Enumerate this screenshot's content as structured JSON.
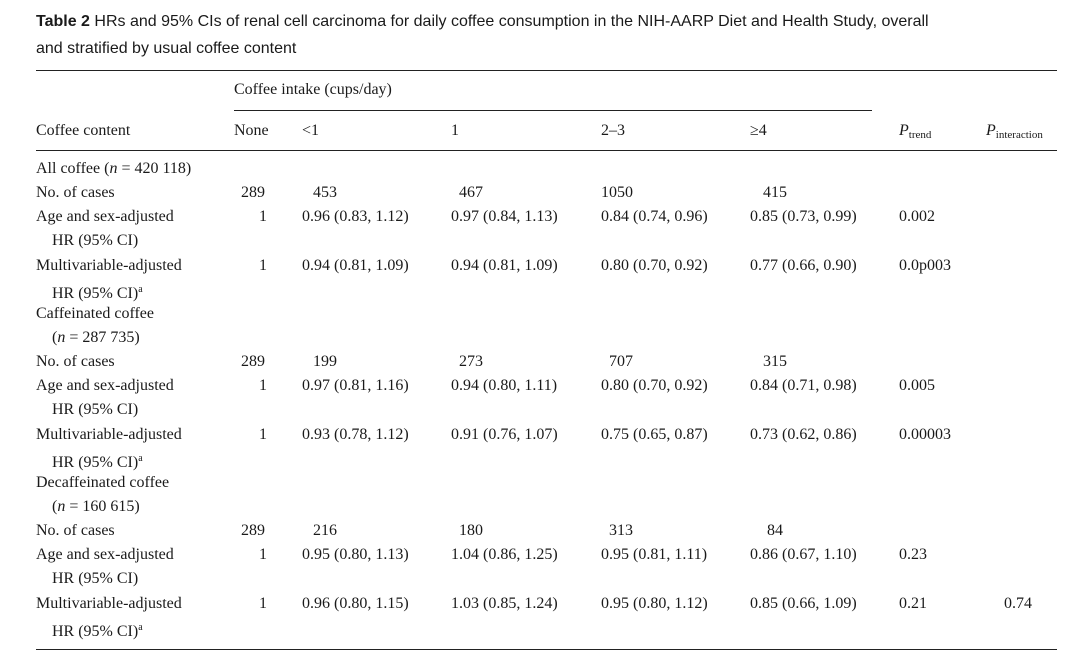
{
  "caption": {
    "label": "Table 2",
    "text": "HRs and 95% CIs of renal cell carcinoma for daily coffee consumption in the NIH-AARP Diet and Health Study, overall",
    "text2": "and stratified by usual coffee content"
  },
  "header": {
    "group": "Coffee intake (cups/day)",
    "row_label": "Coffee content",
    "cols": [
      "None",
      "<1",
      "1",
      "2–3",
      "≥4"
    ],
    "p_trend": "P",
    "p_trend_sub": "trend",
    "p_interaction": "P",
    "p_interaction_sub": "interaction"
  },
  "sections": [
    {
      "title": "All coffee (",
      "title_n": "n",
      "title_rest": " = 420 118)",
      "title2": "",
      "cases_label": "No. of cases",
      "cases": [
        "289",
        "453",
        "467",
        "1050",
        "415"
      ],
      "age_label": "Age and sex-adjusted",
      "age_label2": "HR (95% CI)",
      "age": [
        "1",
        "0.96 (0.83, 1.12)",
        "0.97 (0.84, 1.13)",
        "0.84 (0.74, 0.96)",
        "0.85 (0.73, 0.99)"
      ],
      "age_p": "0.002",
      "multi_label": "Multivariable-adjusted",
      "multi_label2": "HR (95% CI)",
      "multi_sup": "a",
      "multi": [
        "1",
        "0.94 (0.81, 1.09)",
        "0.94 (0.81, 1.09)",
        "0.80 (0.70, 0.92)",
        "0.77 (0.66, 0.90)"
      ],
      "multi_p": "0.0p003",
      "p_interaction": ""
    },
    {
      "title": "Caffeinated coffee",
      "title_n": "n",
      "title_rest": " = 287 735)",
      "title2": "(",
      "cases_label": "No. of cases",
      "cases": [
        "289",
        "199",
        "273",
        "707",
        "315"
      ],
      "age_label": "Age and sex-adjusted",
      "age_label2": "HR (95% CI)",
      "age": [
        "1",
        "0.97 (0.81, 1.16)",
        "0.94 (0.80, 1.11)",
        "0.80 (0.70, 0.92)",
        "0.84 (0.71, 0.98)"
      ],
      "age_p": "0.005",
      "multi_label": "Multivariable-adjusted",
      "multi_label2": "HR (95% CI)",
      "multi_sup": "a",
      "multi": [
        "1",
        "0.93 (0.78, 1.12)",
        "0.91 (0.76, 1.07)",
        "0.75 (0.65, 0.87)",
        "0.73 (0.62, 0.86)"
      ],
      "multi_p": "0.00003",
      "p_interaction": ""
    },
    {
      "title": "Decaffeinated coffee",
      "title_n": "n",
      "title_rest": " = 160 615)",
      "title2": "(",
      "cases_label": "No. of cases",
      "cases": [
        "289",
        "216",
        "180",
        "313",
        "84"
      ],
      "age_label": "Age and sex-adjusted",
      "age_label2": "HR (95% CI)",
      "age": [
        "1",
        "0.95 (0.80, 1.13)",
        "1.04 (0.86, 1.25)",
        "0.95 (0.81, 1.11)",
        "0.86 (0.67, 1.10)"
      ],
      "age_p": "0.23",
      "multi_label": "Multivariable-adjusted",
      "multi_label2": "HR (95% CI)",
      "multi_sup": "a",
      "multi": [
        "1",
        "0.96 (0.80, 1.15)",
        "1.03 (0.85, 1.24)",
        "0.95 (0.80, 1.12)",
        "0.85 (0.66, 1.09)"
      ],
      "multi_p": "0.21",
      "p_interaction": "0.74"
    }
  ]
}
